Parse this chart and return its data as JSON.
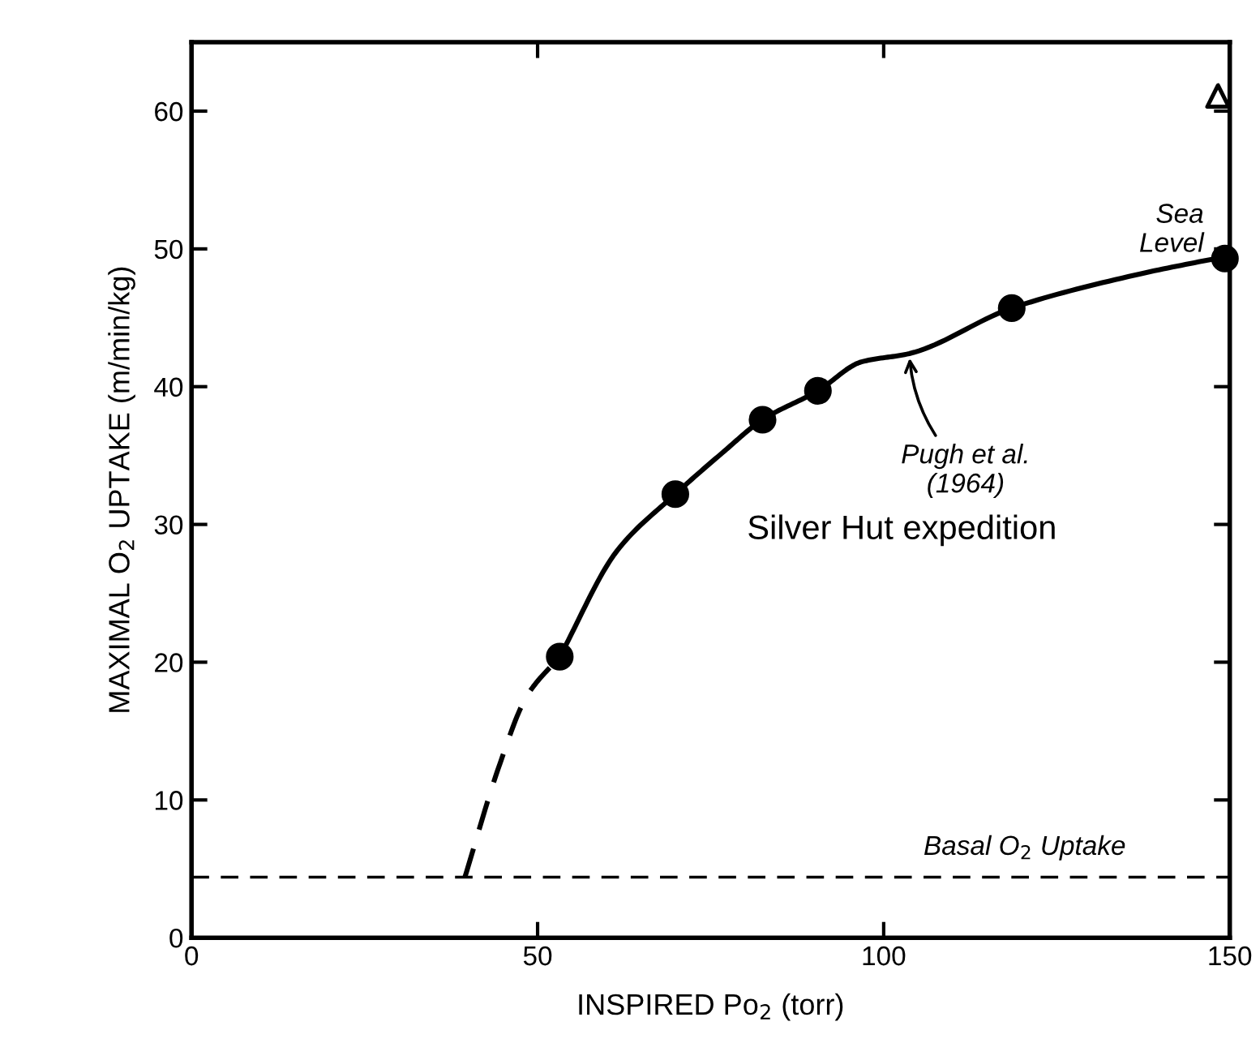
{
  "chart_data": {
    "type": "scatter",
    "xlabel": "INSPIRED Po$_{2}$ (torr)",
    "ylabel": "MAXIMAL O$_{2}$ UPTAKE (m/min/kg)",
    "xlim": [
      0,
      150
    ],
    "ylim": [
      0,
      65
    ],
    "xticks": [
      0,
      50,
      100,
      150
    ],
    "yticks": [
      0,
      10,
      20,
      30,
      40,
      50,
      60
    ],
    "grid": false,
    "legend": false,
    "series": [
      {
        "type": "line",
        "color": "#000000",
        "line_style": "dashed",
        "marker": "none",
        "x": [
          39.5,
          44.4,
          48.4,
          53.2
        ],
        "values": [
          4.4,
          12.4,
          17.5,
          20.4
        ]
      },
      {
        "type": "line",
        "color": "#000000",
        "line_style": "solid",
        "marker": "none",
        "x": [
          53.2,
          61.5,
          69.9,
          76.7,
          82.5,
          90.5,
          96.8,
          103.7,
          118.5,
          137.2,
          150
        ],
        "values": [
          20.4,
          28.1,
          32.2,
          35.2,
          37.6,
          39.7,
          41.8,
          42.4,
          45.7,
          48.2,
          49.5
        ]
      },
      {
        "color": "#000000",
        "marker": "circle",
        "x": [
          53.2,
          69.9,
          82.5,
          90.5,
          118.5,
          149.3
        ],
        "values": [
          20.4,
          32.2,
          37.6,
          39.7,
          45.7,
          49.3
        ]
      },
      {
        "color": "#000000",
        "marker": "triangle",
        "x": [
          148.3
        ],
        "values": [
          61.1
        ]
      }
    ],
    "ref_lines": [
      {
        "axis": "y",
        "value": 4.4,
        "label": "Basal O$_{2}$ Uptake",
        "color": "#000000",
        "line_style": "dashed"
      }
    ],
    "annotations": [
      "Sea\nLevel",
      {
        "text": "Pugh et al.\n(1964)",
        "x": 103.7,
        "y": 42.4
      },
      "Silver Hut expedition"
    ]
  }
}
